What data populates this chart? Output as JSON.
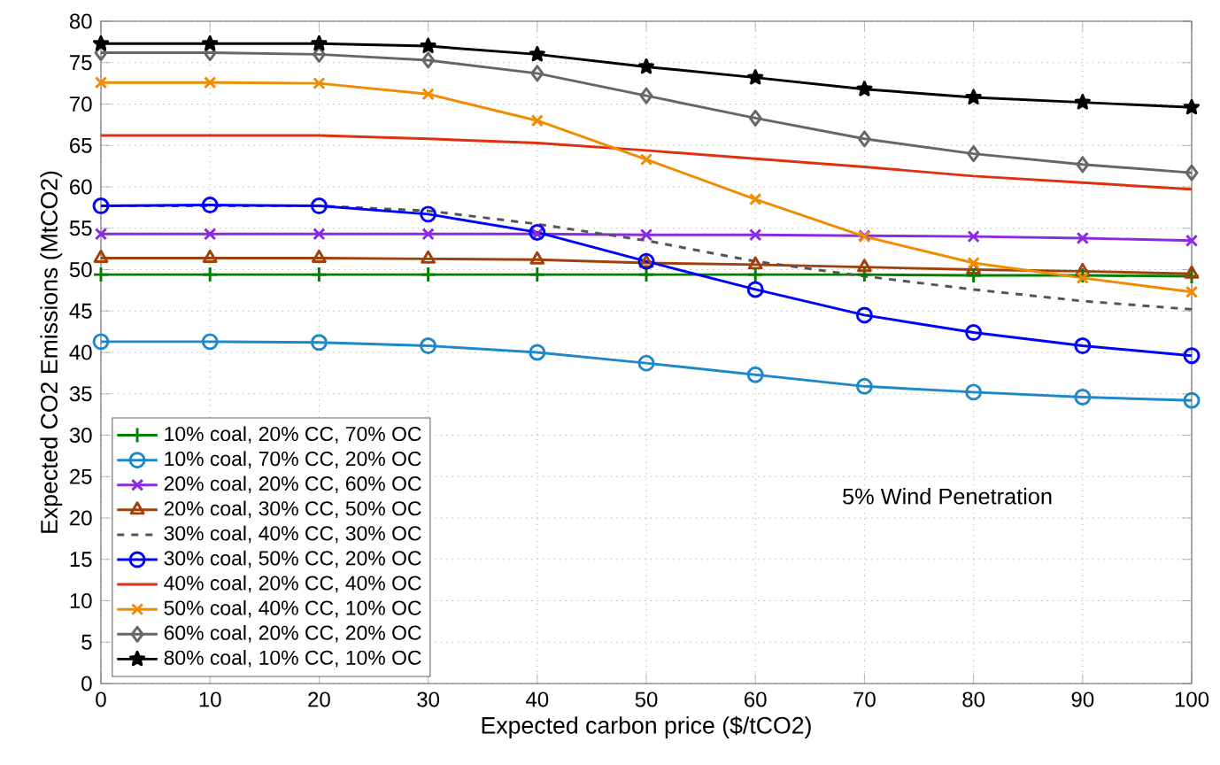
{
  "chart_data": {
    "type": "line",
    "xlabel": "Expected carbon price ($/tCO2)",
    "ylabel": "Expected CO2 Emissions (MtCO2)",
    "x": [
      0,
      10,
      20,
      30,
      40,
      50,
      60,
      70,
      80,
      90,
      100
    ],
    "xlim": [
      0,
      100
    ],
    "xticks": [
      0,
      10,
      20,
      30,
      40,
      50,
      60,
      70,
      80,
      90,
      100
    ],
    "ylim": [
      0,
      80
    ],
    "yticks": [
      0,
      5,
      10,
      15,
      20,
      25,
      30,
      35,
      40,
      45,
      50,
      55,
      60,
      65,
      70,
      75,
      80
    ],
    "grid": true,
    "legend": "bottom left",
    "annotations": [
      "5% Wind Penetration"
    ],
    "series": [
      {
        "name": "10% coal, 20% CC, 70% OC",
        "color": "#008000",
        "marker": "plus",
        "line_style": "solid",
        "values": [
          49.4,
          49.4,
          49.4,
          49.4,
          49.4,
          49.4,
          49.4,
          49.4,
          49.3,
          49.3,
          49.2
        ]
      },
      {
        "name": "10% coal, 70% CC, 20% OC",
        "color": "#1e88c8",
        "marker": "circle",
        "line_style": "solid",
        "values": [
          41.3,
          41.3,
          41.2,
          40.8,
          40,
          38.7,
          37.3,
          35.9,
          35.2,
          34.6,
          34.2
        ]
      },
      {
        "name": "20% coal, 20% CC, 60% OC",
        "color": "#8a2be2",
        "marker": "cross",
        "line_style": "solid",
        "values": [
          54.3,
          54.3,
          54.3,
          54.3,
          54.3,
          54.2,
          54.2,
          54.1,
          54,
          53.8,
          53.5
        ]
      },
      {
        "name": "20% coal, 30% CC, 50% OC",
        "color": "#a0400a",
        "marker": "triangle",
        "line_style": "solid",
        "values": [
          51.4,
          51.4,
          51.4,
          51.3,
          51.2,
          50.8,
          50.6,
          50.3,
          50,
          49.8,
          49.5
        ]
      },
      {
        "name": "30% coal, 40% CC, 30% OC",
        "color": "#555555",
        "marker": "none",
        "line_style": "dashed",
        "values": [
          57.7,
          57.7,
          57.7,
          57.1,
          55.5,
          53.5,
          51,
          49.2,
          47.6,
          46.2,
          45.2
        ]
      },
      {
        "name": "30% coal, 50% CC, 20% OC",
        "color": "#0000ff",
        "marker": "circle",
        "line_style": "solid",
        "values": [
          57.7,
          57.8,
          57.7,
          56.7,
          54.5,
          51,
          47.6,
          44.5,
          42.4,
          40.8,
          39.6
        ]
      },
      {
        "name": "40% coal, 20% CC, 40% OC",
        "color": "#e03010",
        "marker": "none",
        "line_style": "solid",
        "values": [
          66.2,
          66.2,
          66.2,
          65.8,
          65.3,
          64.4,
          63.4,
          62.4,
          61.3,
          60.5,
          59.7
        ]
      },
      {
        "name": "50% coal, 40% CC, 10% OC",
        "color": "#f08c00",
        "marker": "cross",
        "line_style": "solid",
        "values": [
          72.6,
          72.6,
          72.5,
          71.2,
          68,
          63.3,
          58.5,
          54,
          50.8,
          49,
          47.3
        ]
      },
      {
        "name": "60% coal, 20% CC, 20% OC",
        "color": "#666666",
        "marker": "diamond",
        "line_style": "solid",
        "values": [
          76.2,
          76.2,
          76,
          75.3,
          73.7,
          71,
          68.3,
          65.8,
          64,
          62.7,
          61.7
        ]
      },
      {
        "name": "80% coal, 10% CC, 10% OC",
        "color": "#000000",
        "marker": "star",
        "line_style": "solid",
        "values": [
          77.3,
          77.3,
          77.3,
          77,
          76,
          74.5,
          73.2,
          71.8,
          70.8,
          70.2,
          69.6
        ]
      }
    ]
  }
}
